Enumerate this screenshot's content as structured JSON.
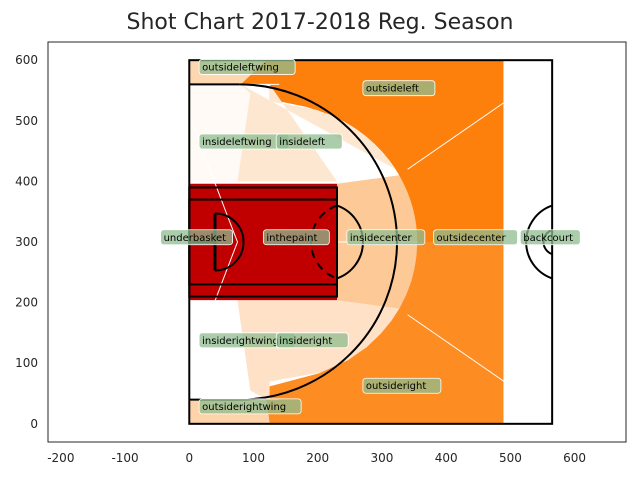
{
  "chart_data": {
    "type": "heatmap",
    "title": "Shot Chart 2017-2018 Reg. Season",
    "xlabel": "",
    "ylabel": "",
    "xlim": [
      -220,
      680
    ],
    "ylim": [
      -30,
      630
    ],
    "x_ticks": [
      -200,
      -100,
      0,
      100,
      200,
      300,
      400,
      500,
      600
    ],
    "y_ticks": [
      0,
      100,
      200,
      300,
      400,
      500,
      600
    ],
    "grid": false,
    "zones": [
      {
        "name": "outsideleftwing",
        "color": "#fdd7b0",
        "label_at": [
          20,
          588
        ]
      },
      {
        "name": "outsideleft",
        "color": "#fd7f0c",
        "label_at": [
          275,
          553
        ]
      },
      {
        "name": "insideleftwing",
        "color": "#fffaf5",
        "label_at": [
          20,
          465
        ]
      },
      {
        "name": "insideleft",
        "color": "#fee7d1",
        "label_at": [
          140,
          465
        ]
      },
      {
        "name": "underbasket",
        "color": "#c00000",
        "label_at": [
          -40,
          307
        ]
      },
      {
        "name": "inthepaint",
        "color": "#c00000",
        "label_at": [
          120,
          307
        ]
      },
      {
        "name": "insidecenter",
        "color": "#fdc996",
        "label_at": [
          250,
          307
        ]
      },
      {
        "name": "outsidecenter",
        "color": "#fd8c23",
        "label_at": [
          385,
          307
        ]
      },
      {
        "name": "backcourt",
        "color": "#ffffff",
        "label_at": [
          520,
          307
        ]
      },
      {
        "name": "insiderightwing",
        "color": "#ffffff",
        "label_at": [
          20,
          137
        ]
      },
      {
        "name": "insideright",
        "color": "#fee1c6",
        "label_at": [
          140,
          137
        ]
      },
      {
        "name": "outsideright",
        "color": "#fd8c23",
        "label_at": [
          275,
          62
        ]
      },
      {
        "name": "outsiderightwing",
        "color": "#fdd4aa",
        "label_at": [
          20,
          28
        ]
      }
    ],
    "colors": {
      "label_box": "#8fbc8f",
      "court_lines": "#000000",
      "zone_borders": "#ffffff",
      "axes_frame": "#262626"
    }
  }
}
